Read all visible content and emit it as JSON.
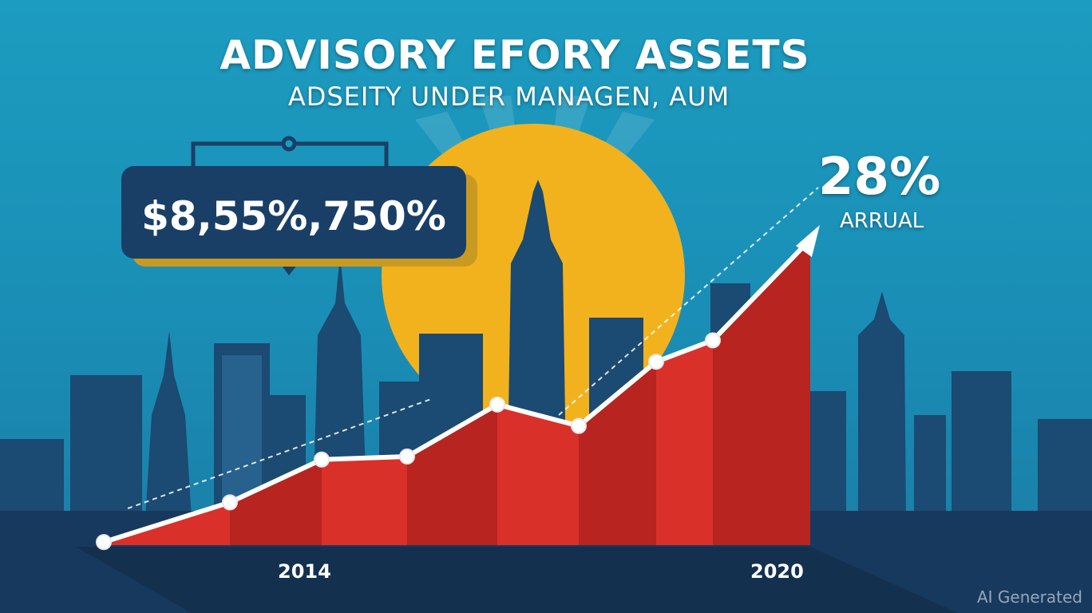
{
  "header": {
    "title": "ADVISORY EFORY ASSETS",
    "subtitle": "ADSEITY UNDER MANAGEN, AUM"
  },
  "callout": {
    "value": "$8,55%,750%"
  },
  "growth": {
    "value": "28%",
    "label": "ARRUAL"
  },
  "watermark": "AI Generated",
  "colors": {
    "sky": "#1c9cc0",
    "sun": "#f2b21e",
    "skyline": "#1b4a72",
    "ground": "#17395e",
    "area": "#d9302a",
    "line": "#ffffff"
  },
  "chart_data": {
    "type": "area",
    "title": "ADVISORY EFORY ASSETS",
    "subtitle": "ADSEITY UNDER MANAGEN, AUM",
    "x_tick_labels": [
      "2014",
      "2020"
    ],
    "values": [
      1,
      14,
      28,
      29,
      46,
      39,
      60,
      67,
      100
    ],
    "ylim": [
      0,
      100
    ],
    "trend_line": "dashed",
    "end_marker": "arrow",
    "grid": false
  }
}
